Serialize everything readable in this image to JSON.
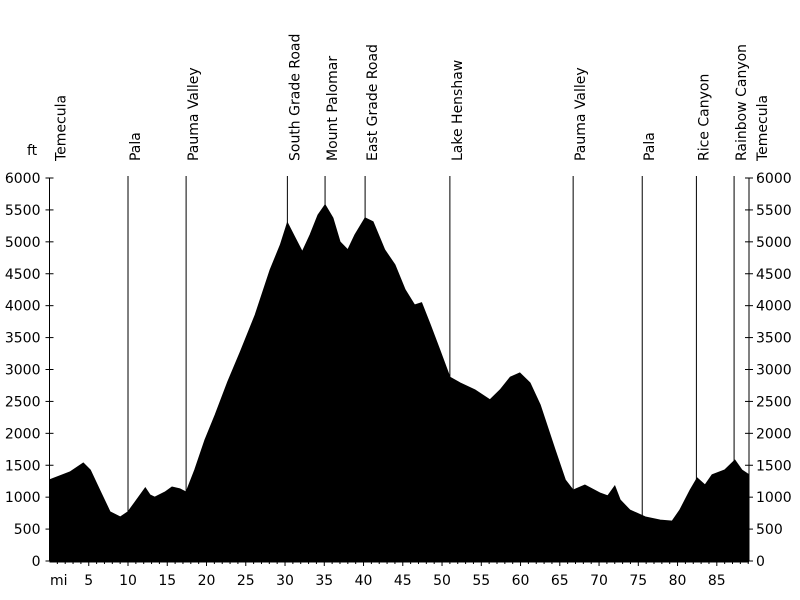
{
  "chart_data": {
    "type": "area",
    "title": "",
    "xlabel": "mi",
    "ylabel": "ft",
    "xlim": [
      0,
      89.1
    ],
    "ylim": [
      0,
      6000
    ],
    "grid": false,
    "fill_color": "#000000",
    "x_ticks": [
      5,
      10,
      15,
      20,
      25,
      30,
      35,
      40,
      45,
      50,
      55,
      60,
      65,
      70,
      75,
      80,
      85
    ],
    "y_ticks": [
      0,
      500,
      1000,
      1500,
      2000,
      2500,
      3000,
      3500,
      4000,
      4500,
      5000,
      5500,
      6000
    ],
    "x": [
      0,
      2.6,
      4.3,
      5.2,
      6.4,
      7.7,
      9,
      10,
      10.9,
      12.2,
      12.8,
      13.4,
      14.7,
      15.6,
      16.6,
      17.4,
      18.5,
      19.8,
      21.1,
      22.7,
      24.3,
      26.2,
      28.1,
      29.4,
      30.3,
      31.3,
      32.2,
      33.2,
      34.2,
      35.1,
      36.1,
      37,
      38,
      38.9,
      40.2,
      41.2,
      42.7,
      44,
      45.3,
      46.5,
      47.4,
      48.5,
      49.7,
      51,
      52.3,
      54.2,
      56.1,
      57.4,
      58.7,
      59.9,
      61.2,
      62.5,
      64.4,
      65.7,
      66.7,
      68.2,
      70.1,
      71.1,
      72,
      72.7,
      73.9,
      75.9,
      77.8,
      79.3,
      80.3,
      81.6,
      82.5,
      83.5,
      84.4,
      86,
      87.3,
      88.2,
      89.1
    ],
    "y": [
      1270,
      1395,
      1535,
      1425,
      1110,
      770,
      690,
      770,
      925,
      1145,
      1035,
      1000,
      1080,
      1160,
      1130,
      1080,
      1425,
      1895,
      2290,
      2805,
      3275,
      3855,
      4560,
      4950,
      5300,
      5060,
      4845,
      5110,
      5420,
      5580,
      5375,
      5000,
      4875,
      5110,
      5375,
      5315,
      4875,
      4640,
      4250,
      4010,
      4045,
      3700,
      3310,
      2880,
      2790,
      2680,
      2525,
      2680,
      2880,
      2945,
      2790,
      2445,
      1740,
      1270,
      1110,
      1190,
      1065,
      1020,
      1175,
      955,
      800,
      690,
      640,
      625,
      800,
      1110,
      1300,
      1190,
      1350,
      1425,
      1580,
      1425,
      1350
    ],
    "waypoints": [
      {
        "name": "Temecula",
        "mi": 0
      },
      {
        "name": "Pala",
        "mi": 10
      },
      {
        "name": "Pauma Valley",
        "mi": 17.4
      },
      {
        "name": "South Grade Road",
        "mi": 30.3
      },
      {
        "name": "Mount Palomar",
        "mi": 35.1
      },
      {
        "name": "East Grade Road",
        "mi": 40.2
      },
      {
        "name": "Lake Henshaw",
        "mi": 51
      },
      {
        "name": "Pauma Valley",
        "mi": 66.7
      },
      {
        "name": "Pala",
        "mi": 75.5
      },
      {
        "name": "Rice Canyon",
        "mi": 82.4
      },
      {
        "name": "Rainbow Canyon",
        "mi": 87.2
      },
      {
        "name": "Temecula",
        "mi": 89.1
      }
    ]
  }
}
